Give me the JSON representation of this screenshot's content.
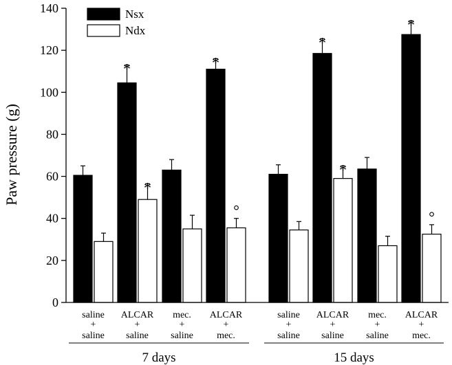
{
  "chart_data": {
    "type": "bar",
    "title": "",
    "xlabel": "",
    "ylabel": "Paw pressure (g)",
    "ylim": [
      0,
      140
    ],
    "yticks": [
      0,
      20,
      40,
      60,
      80,
      100,
      120,
      140
    ],
    "legend_position": "top-left",
    "grid": false,
    "groups": [
      {
        "label": "7 days",
        "categories": [
          {
            "top": "saline",
            "plus": "+",
            "bottom": "saline"
          },
          {
            "top": "ALCAR",
            "plus": "+",
            "bottom": "saline"
          },
          {
            "top": "mec.",
            "plus": "+",
            "bottom": "saline"
          },
          {
            "top": "ALCAR",
            "plus": "+",
            "bottom": "mec."
          }
        ]
      },
      {
        "label": "15 days",
        "categories": [
          {
            "top": "saline",
            "plus": "+",
            "bottom": "saline"
          },
          {
            "top": "ALCAR",
            "plus": "+",
            "bottom": "saline"
          },
          {
            "top": "mec.",
            "plus": "+",
            "bottom": "saline"
          },
          {
            "top": "ALCAR",
            "plus": "+",
            "bottom": "mec."
          }
        ]
      }
    ],
    "series": [
      {
        "name": "Nsx",
        "color": "#000000",
        "values": [
          60.5,
          104.5,
          63.0,
          111.0,
          61.0,
          118.5,
          63.5,
          127.5
        ],
        "errors": [
          4.5,
          8.5,
          5.0,
          5.0,
          4.5,
          7.0,
          5.5,
          6.5
        ],
        "marks": [
          "",
          "*",
          "",
          "*",
          "",
          "*",
          "",
          "*"
        ]
      },
      {
        "name": "Ndx",
        "color": "#ffffff",
        "values": [
          29.0,
          49.0,
          35.0,
          35.5,
          34.5,
          59.0,
          27.0,
          32.5
        ],
        "errors": [
          4.0,
          7.5,
          6.5,
          4.5,
          4.0,
          6.0,
          4.5,
          4.5
        ],
        "marks": [
          "",
          "*",
          "",
          "°",
          "",
          "*",
          "",
          "°"
        ]
      }
    ]
  }
}
